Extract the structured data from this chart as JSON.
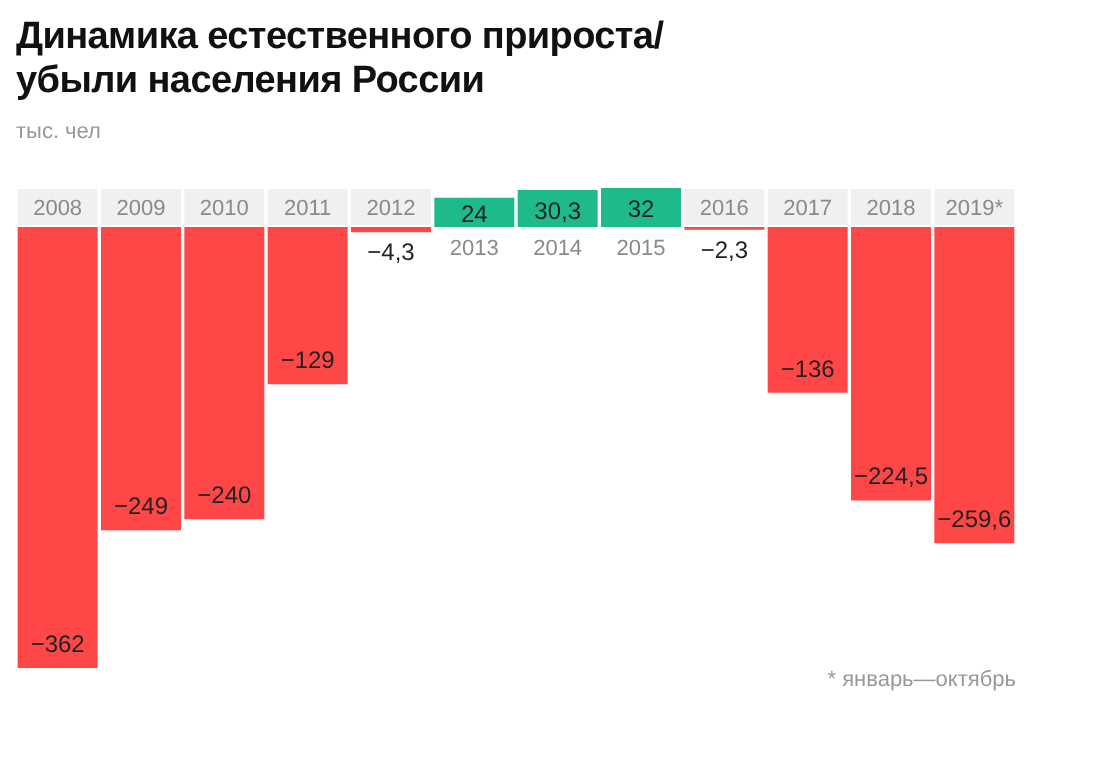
{
  "chart_data": {
    "type": "bar",
    "title": "Динамика естественного прироста/убыли населения России",
    "subtitle": "тыс. чел",
    "annotations": [
      "* январь—октябрь"
    ],
    "categories": [
      "2008",
      "2009",
      "2010",
      "2011",
      "2012",
      "2013",
      "2014",
      "2015",
      "2016",
      "2017",
      "2018",
      "2019*"
    ],
    "values": [
      -362,
      -249,
      -240,
      -129,
      -4.3,
      24,
      30.3,
      32,
      -2.3,
      -136,
      -224.5,
      -259.6
    ],
    "value_labels": [
      "−362",
      "−249",
      "−240",
      "−129",
      "−4,3",
      "24",
      "30,3",
      "32",
      "−2,3",
      "−136",
      "−224,5",
      "−259,6"
    ],
    "colors": [
      "#ff4747",
      "#ff4747",
      "#ff4747",
      "#ff4747",
      "#ff4747",
      "#1fba8c",
      "#1fba8c",
      "#1fba8c",
      "#ff4747",
      "#ff4747",
      "#ff4747",
      "#ff4747"
    ]
  }
}
